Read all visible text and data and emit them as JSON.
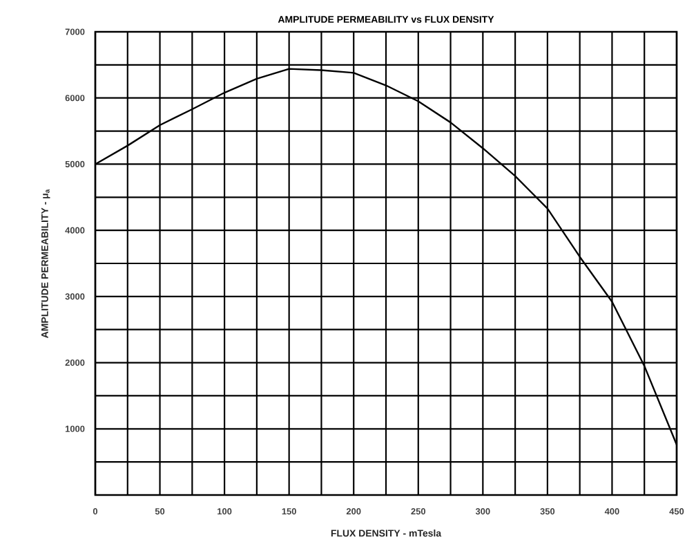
{
  "chart_data": {
    "type": "line",
    "title": "AMPLITUDE PERMEABILITY vs FLUX DENSITY",
    "xlabel": "FLUX DENSITY - mTesla",
    "ylabel": "AMPLITUDE PERMEABILITY - μ$_{a}$",
    "x": [
      0,
      25,
      50,
      75,
      100,
      125,
      150,
      175,
      200,
      225,
      250,
      275,
      300,
      325,
      350,
      375,
      400,
      425,
      450
    ],
    "series": [
      {
        "color": "#000000",
        "values": [
          5000,
          5280,
          5590,
          5830,
          6080,
          6290,
          6440,
          6420,
          6380,
          6190,
          5950,
          5630,
          5240,
          4820,
          4330,
          3600,
          2920,
          1950,
          760
        ]
      }
    ],
    "xlim": [
      0,
      450
    ],
    "ylim": [
      0,
      7000
    ],
    "xticks": [
      0,
      {
        "value": 25,
        "label": null
      },
      50,
      {
        "value": 75,
        "label": null
      },
      100,
      {
        "value": 125,
        "label": null
      },
      150,
      {
        "value": 175,
        "label": null
      },
      200,
      {
        "value": 225,
        "label": null
      },
      250,
      {
        "value": 275,
        "label": null
      },
      300,
      {
        "value": 325,
        "label": null
      },
      350,
      {
        "value": 375,
        "label": null
      },
      400,
      {
        "value": 425,
        "label": null
      },
      450
    ],
    "yticks": [
      {
        "value": 0,
        "label": null
      },
      {
        "value": 500,
        "label": null
      },
      1000,
      {
        "value": 1500,
        "label": null
      },
      2000,
      {
        "value": 2500,
        "label": null
      },
      3000,
      {
        "value": 3500,
        "label": null
      },
      4000,
      {
        "value": 4500,
        "label": null
      },
      5000,
      {
        "value": 5500,
        "label": null
      },
      6000,
      {
        "value": 6500,
        "label": null
      },
      7000
    ],
    "grid": true,
    "marker": "none",
    "line_style": "solid"
  }
}
